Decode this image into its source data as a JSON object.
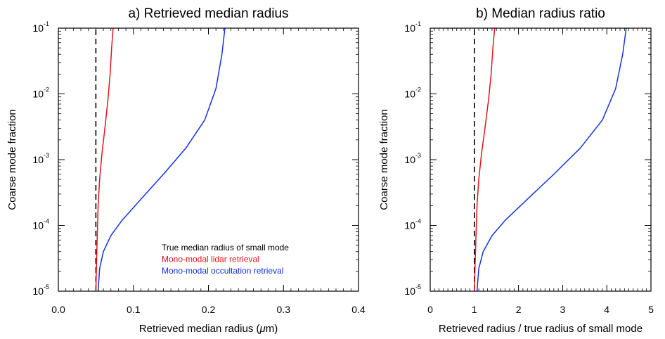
{
  "chart_data": [
    {
      "type": "line",
      "title": "a) Retrieved median radius",
      "xlabel": "Retrieved median radius (μm)",
      "ylabel": "Coarse mode fraction",
      "xlim": [
        0.0,
        0.4
      ],
      "ylim": [
        1e-05,
        0.1
      ],
      "yscale": "log",
      "xticks": [
        "0.0",
        "0.1",
        "0.2",
        "0.3",
        "0.4"
      ],
      "yticks": [
        {
          "base": "10",
          "exp": "-5"
        },
        {
          "base": "10",
          "exp": "-4"
        },
        {
          "base": "10",
          "exp": "-3"
        },
        {
          "base": "10",
          "exp": "-2"
        },
        {
          "base": "10",
          "exp": "-1"
        }
      ],
      "legend_position": "lower-right",
      "series": [
        {
          "name": "True median radius of small mode",
          "color": "#000000",
          "dashed": true,
          "points": [
            [
              0.05,
              1e-05
            ],
            [
              0.05,
              0.1
            ]
          ]
        },
        {
          "name": "Mono-modal lidar retrieval",
          "color": "#e8141c",
          "points": [
            [
              0.05,
              1e-05
            ],
            [
              0.051,
              3e-05
            ],
            [
              0.052,
              8e-05
            ],
            [
              0.053,
              0.0002
            ],
            [
              0.055,
              0.0005
            ],
            [
              0.058,
              0.0012
            ],
            [
              0.062,
              0.003
            ],
            [
              0.066,
              0.008
            ],
            [
              0.069,
              0.02
            ],
            [
              0.071,
              0.05
            ],
            [
              0.073,
              0.1
            ]
          ]
        },
        {
          "name": "Mono-modal occultation retrieval",
          "color": "#1432e6",
          "points": [
            [
              0.053,
              1e-05
            ],
            [
              0.055,
              2.2e-05
            ],
            [
              0.06,
              4e-05
            ],
            [
              0.07,
              7e-05
            ],
            [
              0.085,
              0.00012
            ],
            [
              0.11,
              0.00025
            ],
            [
              0.14,
              0.0006
            ],
            [
              0.17,
              0.0015
            ],
            [
              0.195,
              0.004
            ],
            [
              0.21,
              0.012
            ],
            [
              0.218,
              0.04
            ],
            [
              0.222,
              0.1
            ]
          ]
        }
      ]
    },
    {
      "type": "line",
      "title": "b) Median radius ratio",
      "xlabel": "Retrieved radius / true radius of small mode",
      "ylabel": "Coarse mode fraction",
      "xlim": [
        0,
        5
      ],
      "ylim": [
        1e-05,
        0.1
      ],
      "yscale": "log",
      "xticks": [
        "0",
        "1",
        "2",
        "3",
        "4",
        "5"
      ],
      "yticks": [
        {
          "base": "10",
          "exp": "-5"
        },
        {
          "base": "10",
          "exp": "-4"
        },
        {
          "base": "10",
          "exp": "-3"
        },
        {
          "base": "10",
          "exp": "-2"
        },
        {
          "base": "10",
          "exp": "-1"
        }
      ],
      "series": [
        {
          "color": "#000000",
          "dashed": true,
          "points": [
            [
              1.0,
              1e-05
            ],
            [
              1.0,
              0.1
            ]
          ]
        },
        {
          "color": "#e8141c",
          "points": [
            [
              1.0,
              1e-05
            ],
            [
              1.02,
              3e-05
            ],
            [
              1.04,
              8e-05
            ],
            [
              1.06,
              0.0002
            ],
            [
              1.1,
              0.0005
            ],
            [
              1.16,
              0.0012
            ],
            [
              1.24,
              0.003
            ],
            [
              1.32,
              0.008
            ],
            [
              1.38,
              0.02
            ],
            [
              1.42,
              0.05
            ],
            [
              1.46,
              0.1
            ]
          ]
        },
        {
          "color": "#1432e6",
          "points": [
            [
              1.06,
              1e-05
            ],
            [
              1.1,
              2.2e-05
            ],
            [
              1.2,
              4e-05
            ],
            [
              1.4,
              7e-05
            ],
            [
              1.7,
              0.00012
            ],
            [
              2.2,
              0.00025
            ],
            [
              2.8,
              0.0006
            ],
            [
              3.4,
              0.0015
            ],
            [
              3.9,
              0.004
            ],
            [
              4.2,
              0.012
            ],
            [
              4.36,
              0.04
            ],
            [
              4.44,
              0.1
            ]
          ]
        }
      ]
    }
  ]
}
